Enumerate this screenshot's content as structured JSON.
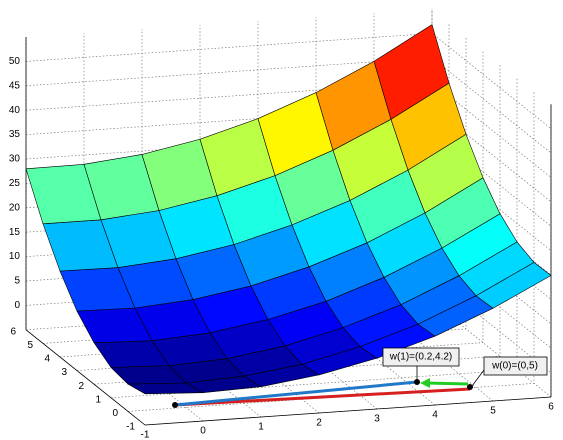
{
  "chart_data": {
    "type": "surface",
    "x": [
      -1,
      0,
      1,
      2,
      3,
      4,
      5,
      6
    ],
    "y": [
      -1,
      0,
      1,
      2,
      3,
      4,
      5,
      6
    ],
    "z": [
      [
        1.4,
        0.8,
        1.2,
        2.8,
        5.4,
        9.1,
        14.0,
        19.9
      ],
      [
        0.6,
        0,
        0.6,
        2.2,
        5.0,
        8.8,
        13.8,
        19.8
      ],
      [
        1.2,
        0.8,
        1.4,
        3.2,
        6.1,
        10.0,
        15.1,
        21.2
      ],
      [
        3.5,
        3.1,
        3.9,
        5.8,
        8.7,
        12.8,
        18.0,
        24.2
      ],
      [
        7.2,
        7.0,
        7.9,
        9.9,
        13.0,
        17.1,
        22.4,
        28.8
      ],
      [
        12.6,
        12.5,
        13.5,
        15.6,
        18.8,
        23.0,
        28.4,
        34.9
      ],
      [
        19.5,
        19.5,
        20.6,
        22.8,
        26.1,
        30.5,
        36.0,
        42.6
      ],
      [
        28.0,
        28.1,
        29.3,
        31.6,
        35.0,
        39.5,
        45.1,
        51.8
      ]
    ],
    "xlim": [
      -1,
      6
    ],
    "ylim": [
      -1,
      6
    ],
    "zlim": [
      -5,
      55
    ],
    "xticks": [
      -1,
      0,
      1,
      2,
      3,
      4,
      5,
      6
    ],
    "yticks": [
      -1,
      0,
      1,
      2,
      3,
      4,
      5,
      6
    ],
    "zticks": [
      0,
      5,
      10,
      15,
      20,
      25,
      30,
      35,
      40,
      45,
      50
    ],
    "grid": true,
    "colormap": "jet",
    "annotations": [
      "w(1)=(0.2,4.2)",
      "w(0)=(0,5)"
    ]
  }
}
